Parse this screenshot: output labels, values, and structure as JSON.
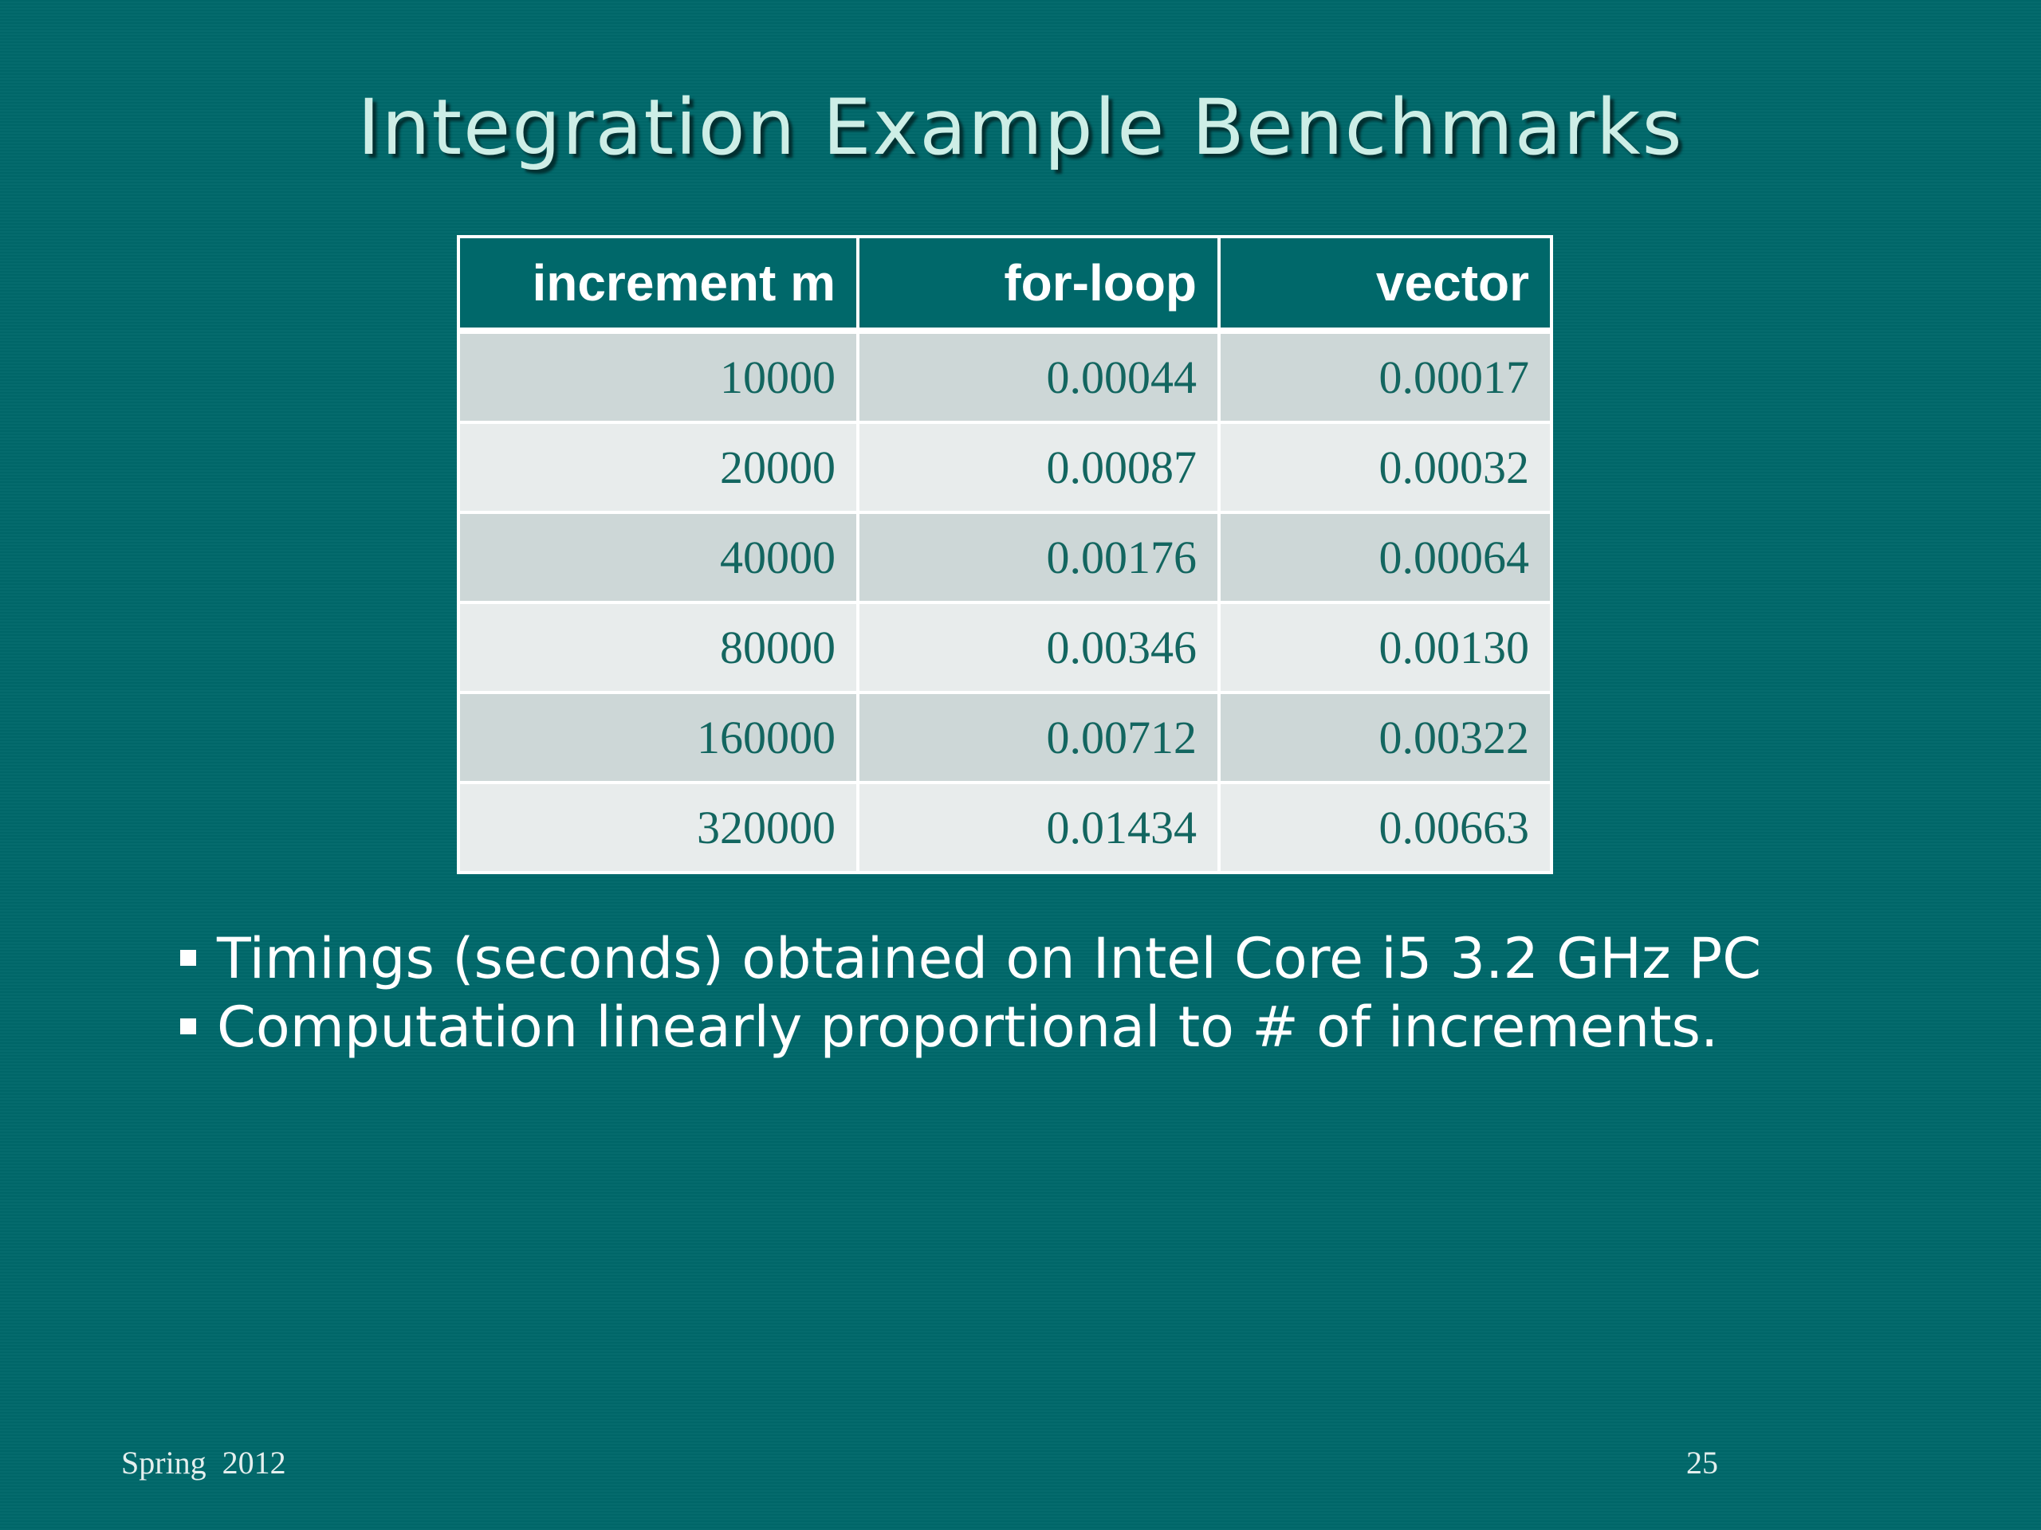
{
  "slide": {
    "title": "Integration Example Benchmarks"
  },
  "table": {
    "headers": [
      "increment m",
      "for-loop",
      "vector"
    ],
    "rows": [
      [
        "10000",
        "0.00044",
        "0.00017"
      ],
      [
        "20000",
        "0.00087",
        "0.00032"
      ],
      [
        "40000",
        "0.00176",
        "0.00064"
      ],
      [
        "80000",
        "0.00346",
        "0.00130"
      ],
      [
        "160000",
        "0.00712",
        "0.00322"
      ],
      [
        "320000",
        "0.01434",
        "0.00663"
      ]
    ]
  },
  "bullets": [
    "Timings (seconds) obtained on Intel Core i5 3.2 GHz PC",
    "Computation linearly proportional to # of increments."
  ],
  "footer": {
    "left": "Spring  2012",
    "page_number": "25"
  },
  "colors": {
    "background": "#00686a",
    "title": "#cdeee6",
    "cell_text": "#136660",
    "row_odd": "#cdd7d7",
    "row_even": "#e8ecec"
  }
}
